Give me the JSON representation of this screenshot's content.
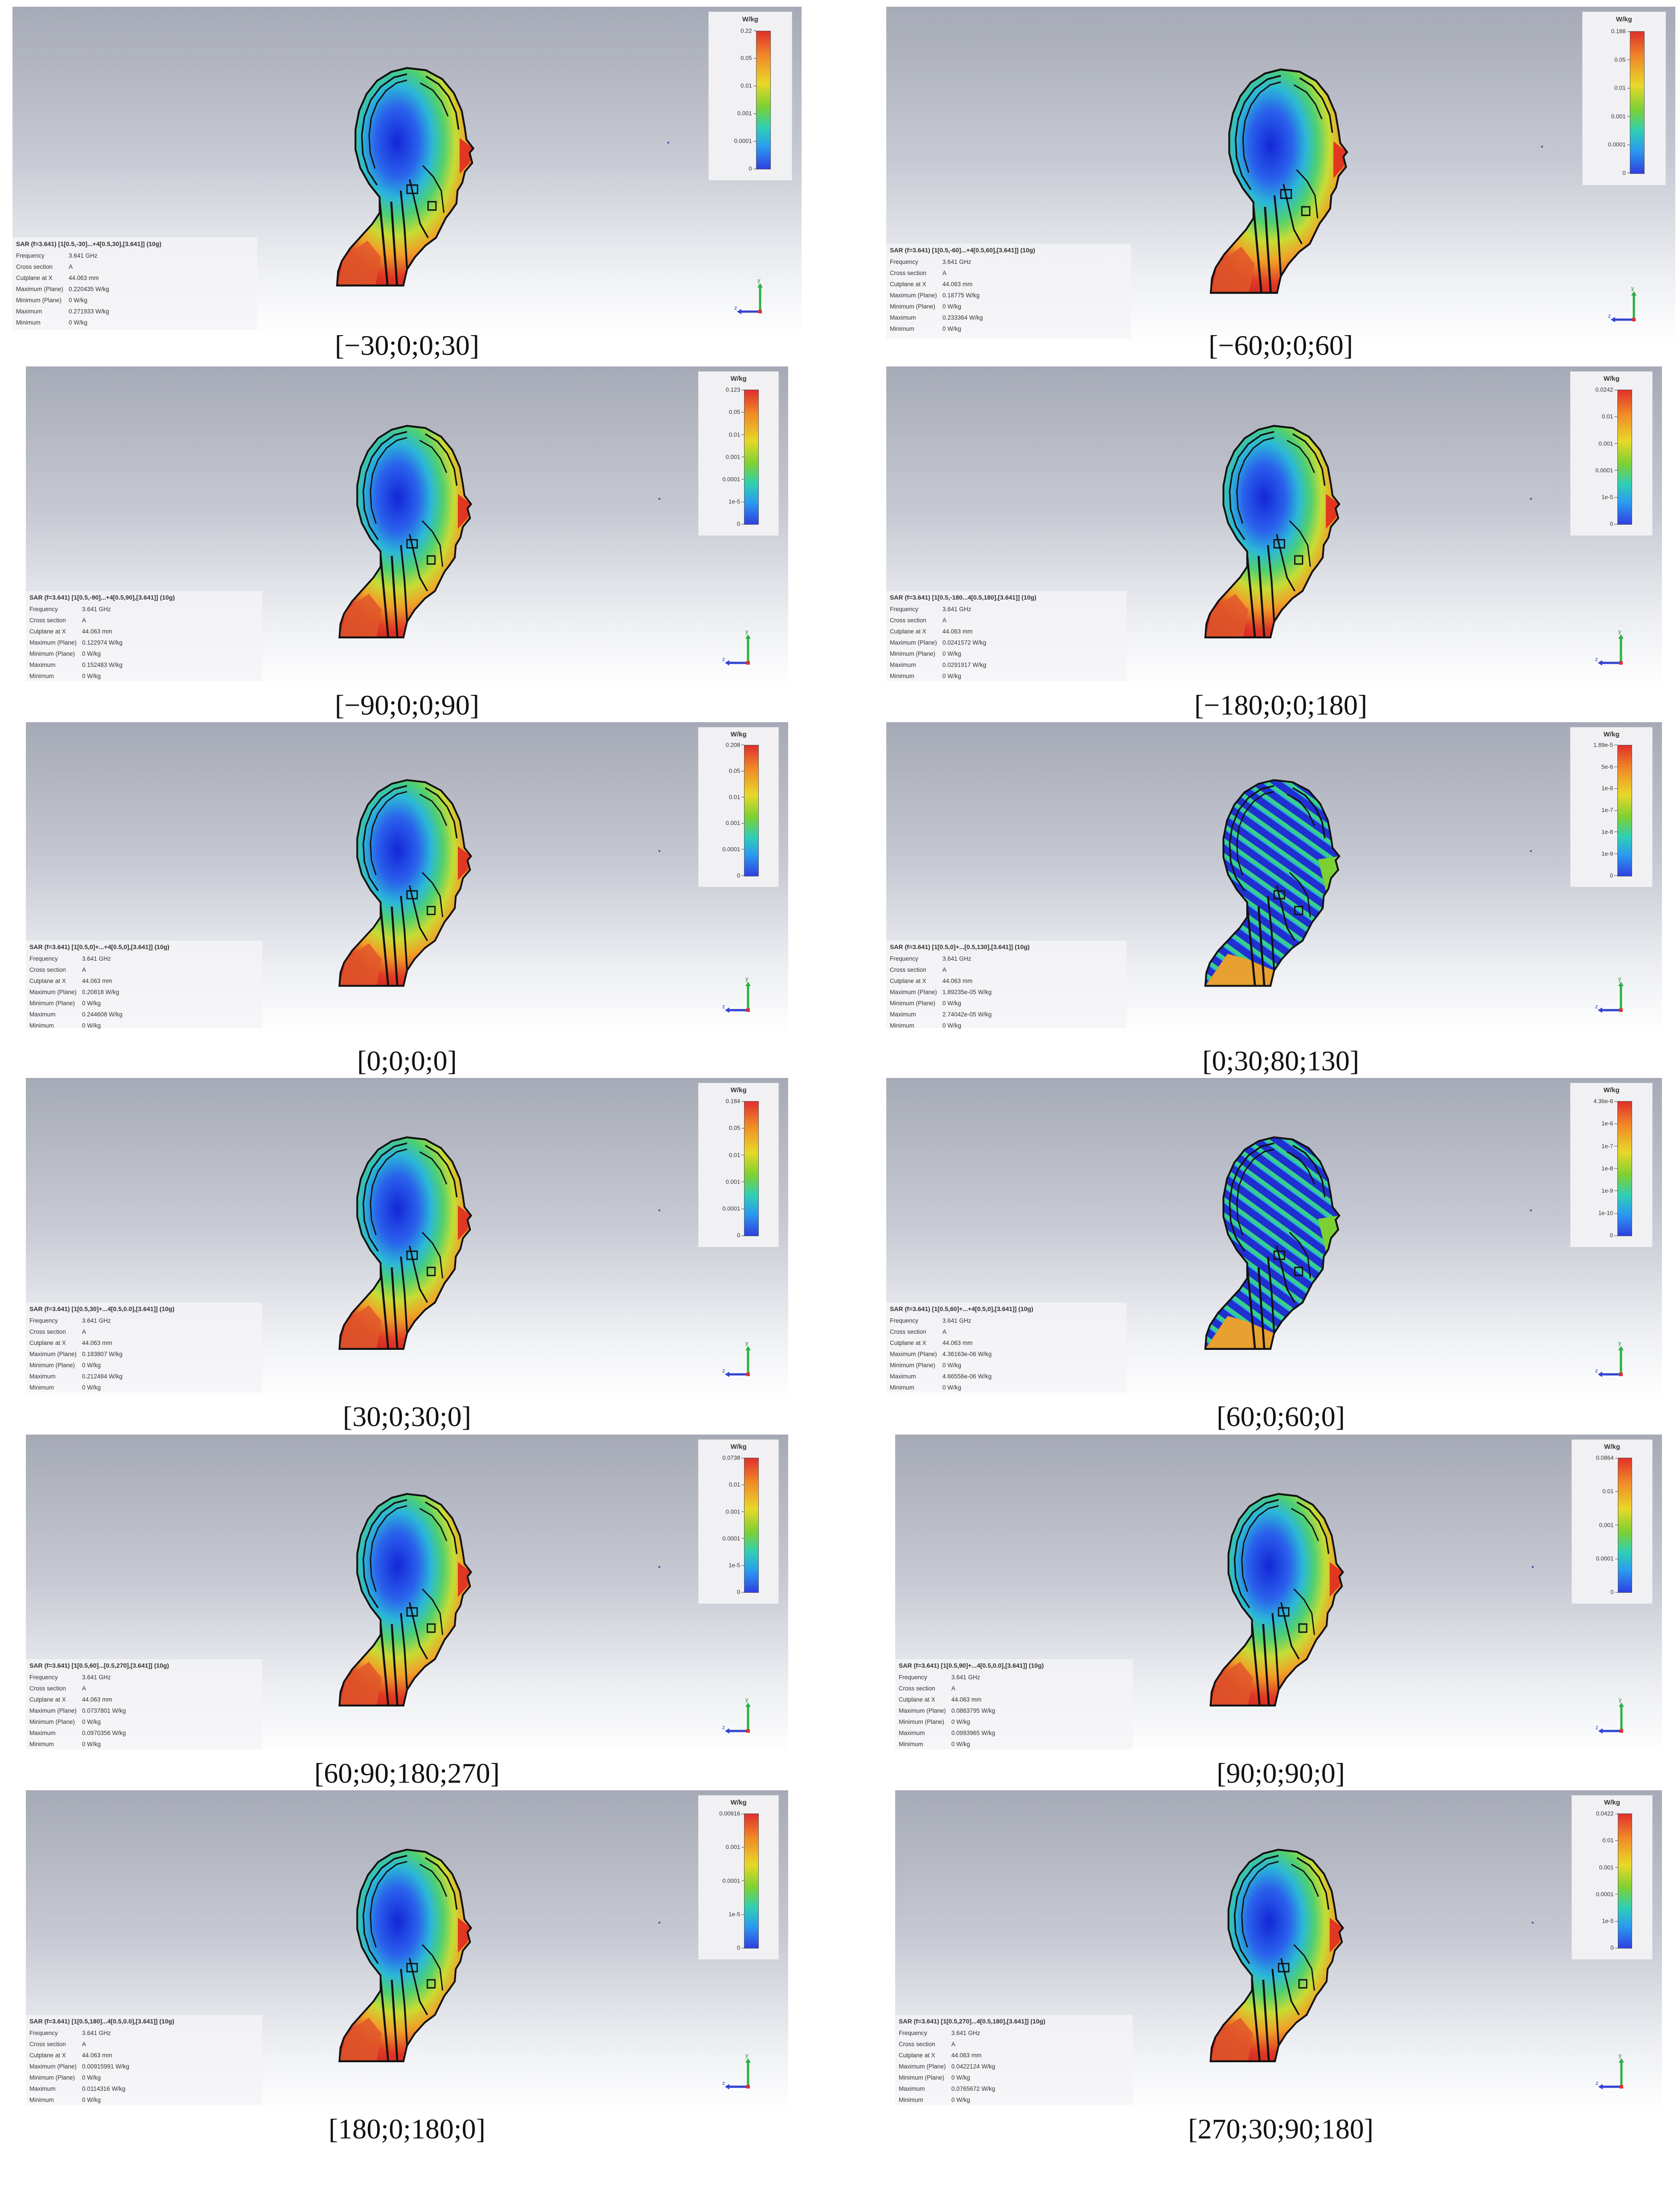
{
  "legend_unit": "W/kg",
  "axis_labels": {
    "y": "y",
    "z": "z"
  },
  "info_labels": [
    "Frequency",
    "Cross section",
    "Cutplane at X",
    "Maximum (Plane)",
    "Minimum (Plane)",
    "Maximum",
    "Minimum"
  ],
  "colors": {
    "red": "#e0302c",
    "orange": "#f08a28",
    "yellow": "#e8d828",
    "green": "#7cd034",
    "cyan": "#2fcfb4",
    "blue": "#2f40e0"
  },
  "panels": [
    {
      "caption": "[−30;0;0;30]",
      "title": "SAR (f=3.641) [1[0.5,-30]...+4[0.5,30],[3.641]] (10g)",
      "values": [
        "3.641 GHz",
        "A",
        "44.063 mm",
        "0.220435 W/kg",
        "0 W/kg",
        "0.271933 W/kg",
        "0 W/kg"
      ],
      "ticks": [
        "0.22",
        "0.05",
        "0.01",
        "0.001",
        "0.0001",
        "0"
      ],
      "pattern": "smooth"
    },
    {
      "caption": "[−60;0;0;60]",
      "title": "SAR (f=3.641) [1[0.5,-60]...+4[0.5,60],[3.641]] (10g)",
      "values": [
        "3.641 GHz",
        "A",
        "44.063 mm",
        "0.18775 W/kg",
        "0 W/kg",
        "0.233364 W/kg",
        "0 W/kg"
      ],
      "ticks": [
        "0.188",
        "0.05",
        "0.01",
        "0.001",
        "0.0001",
        "0"
      ],
      "pattern": "smooth"
    },
    {
      "caption": "[−90;0;0;90]",
      "title": "SAR (f=3.641) [1[0.5,-90]...+4[0.5,90],[3.641]] (10g)",
      "values": [
        "3.641 GHz",
        "A",
        "44.063 mm",
        "0.122974 W/kg",
        "0 W/kg",
        "0.152483 W/kg",
        "0 W/kg"
      ],
      "ticks": [
        "0.123",
        "0.05",
        "0.01",
        "0.001",
        "0.0001",
        "1e-5",
        "0"
      ],
      "pattern": "smooth"
    },
    {
      "caption": "[−180;0;0;180]",
      "title": "SAR (f=3.641) [1[0.5,-180...4[0.5,180],[3.641]] (10g)",
      "values": [
        "3.641 GHz",
        "A",
        "44.063 mm",
        "0.0241572 W/kg",
        "0 W/kg",
        "0.0291917 W/kg",
        "0 W/kg"
      ],
      "ticks": [
        "0.0242",
        "0.01",
        "0.001",
        "0.0001",
        "1e-5",
        "0"
      ],
      "pattern": "smooth"
    },
    {
      "caption": "[0;0;0;0]",
      "title": "SAR (f=3.641) [1[0.5,0]+...+4[0.5,0],[3.641]] (10g)",
      "values": [
        "3.641 GHz",
        "A",
        "44.063 mm",
        "0.20818 W/kg",
        "0 W/kg",
        "0.244608 W/kg",
        "0 W/kg"
      ],
      "ticks": [
        "0.208",
        "0.05",
        "0.01",
        "0.001",
        "0.0001",
        "0"
      ],
      "pattern": "smooth"
    },
    {
      "caption": "[0;30;80;130]",
      "title": "SAR (f=3.641) [1[0.5,0]+...[0.5,130],[3.641]] (10g)",
      "values": [
        "3.641 GHz",
        "A",
        "44.063 mm",
        "1.89235e-05 W/kg",
        "0 W/kg",
        "2.74042e-05 W/kg",
        "0 W/kg"
      ],
      "ticks": [
        "1.89e-5",
        "5e-6",
        "1e-6",
        "1e-7",
        "1e-8",
        "1e-9",
        "0"
      ],
      "pattern": "stripes"
    },
    {
      "caption": "[30;0;30;0]",
      "title": "SAR (f=3.641) [1[0.5,30]+...4[0.5,0.0],[3.641]] (10g)",
      "values": [
        "3.641 GHz",
        "A",
        "44.063 mm",
        "0.183807 W/kg",
        "0 W/kg",
        "0.212484 W/kg",
        "0 W/kg"
      ],
      "ticks": [
        "0.184",
        "0.05",
        "0.01",
        "0.001",
        "0.0001",
        "0"
      ],
      "pattern": "smooth"
    },
    {
      "caption": "[60;0;60;0]",
      "title": "SAR (f=3.641) [1[0.5,60]+...+4[0.5,0],[3.641]] (10g)",
      "values": [
        "3.641 GHz",
        "A",
        "44.063 mm",
        "4.36163e-06 W/kg",
        "0 W/kg",
        "4.66556e-06 W/kg",
        "0 W/kg"
      ],
      "ticks": [
        "4.36e-6",
        "1e-6",
        "1e-7",
        "1e-8",
        "1e-9",
        "1e-10",
        "0"
      ],
      "pattern": "stripes"
    },
    {
      "caption": "[60;90;180;270]",
      "title": "SAR (f=3.641) [1[0.5,60]...[0.5,270],[3.641]] (10g)",
      "values": [
        "3.641 GHz",
        "A",
        "44.063 mm",
        "0.0737801 W/kg",
        "0 W/kg",
        "0.0970356 W/kg",
        "0 W/kg"
      ],
      "ticks": [
        "0.0738",
        "0.01",
        "0.001",
        "0.0001",
        "1e-5",
        "0"
      ],
      "pattern": "smooth"
    },
    {
      "caption": "[90;0;90;0]",
      "title": "SAR (f=3.641) [1[0.5,90]+...4[0.5,0.0],[3.641]] (10g)",
      "values": [
        "3.641 GHz",
        "A",
        "44.063 mm",
        "0.0863795 W/kg",
        "0 W/kg",
        "0.0993965 W/kg",
        "0 W/kg"
      ],
      "ticks": [
        "0.0864",
        "0.01",
        "0.001",
        "0.0001",
        "0"
      ],
      "pattern": "smooth"
    },
    {
      "caption": "[180;0;180;0]",
      "title": "SAR (f=3.641) [1[0.5,180]...4[0.5,0.0],[3.641]] (10g)",
      "values": [
        "3.641 GHz",
        "A",
        "44.063 mm",
        "0.00915991 W/kg",
        "0 W/kg",
        "0.0114316 W/kg",
        "0 W/kg"
      ],
      "ticks": [
        "0.00916",
        "0.001",
        "0.0001",
        "1e-5",
        "0"
      ],
      "pattern": "smooth"
    },
    {
      "caption": "[270;30;90;180]",
      "title": "SAR (f=3.641) [1[0.5,270]...4[0.5,180],[3.641]] (10g)",
      "values": [
        "3.641 GHz",
        "A",
        "44.063 mm",
        "0.0422124 W/kg",
        "0 W/kg",
        "0.0765672 W/kg",
        "0 W/kg"
      ],
      "ticks": [
        "0.0422",
        "0.01",
        "0.001",
        "0.0001",
        "1e-5",
        "0"
      ],
      "pattern": "smooth"
    }
  ]
}
